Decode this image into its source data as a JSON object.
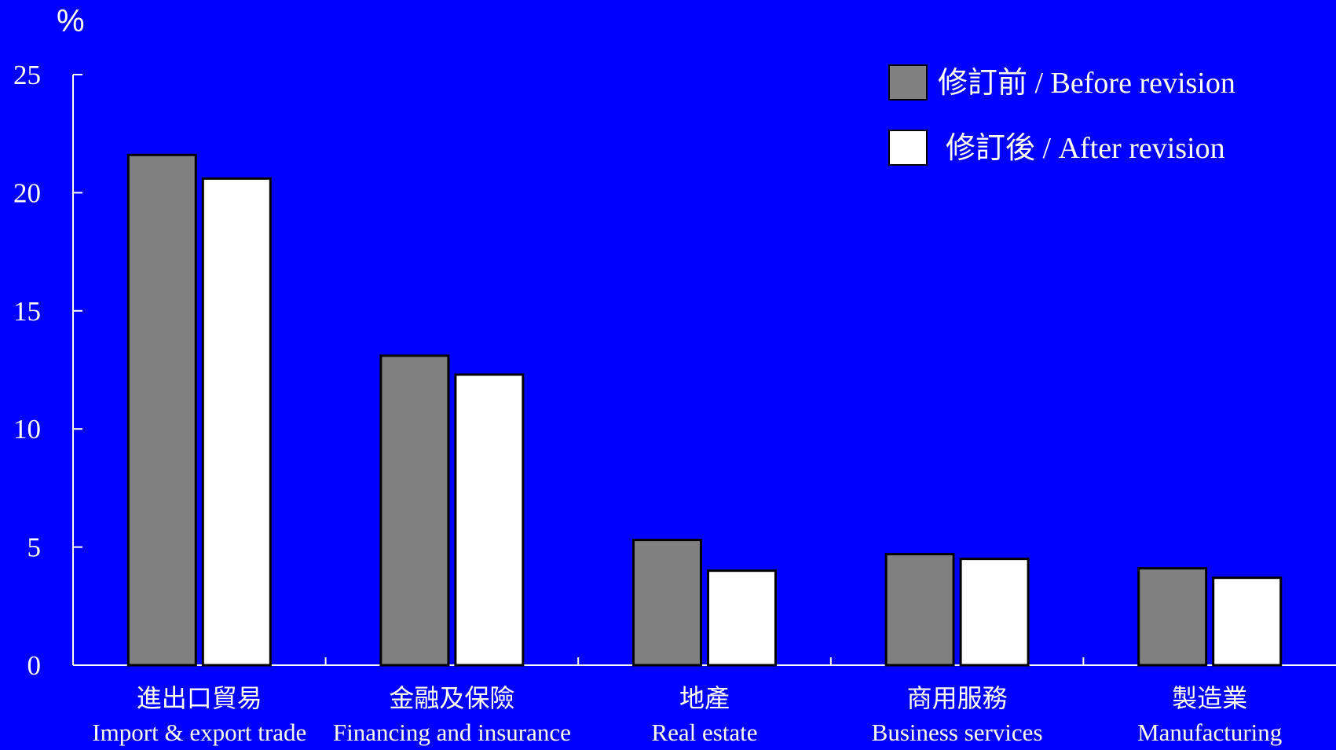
{
  "chart_data": {
    "type": "bar",
    "ylabel": "%",
    "ylim": [
      0,
      25
    ],
    "yticks": [
      "0",
      "5",
      "10",
      "15",
      "20",
      "25"
    ],
    "grid": false,
    "legend_position": "top-right",
    "categories": [
      {
        "zh": "進出口貿易",
        "en": "Import & export trade"
      },
      {
        "zh": "金融及保險",
        "en": "Financing and insurance"
      },
      {
        "zh": "地產",
        "en": "Real estate"
      },
      {
        "zh": "商用服務",
        "en": "Business services"
      },
      {
        "zh": "製造業",
        "en": "Manufacturing"
      }
    ],
    "series": [
      {
        "name": "修訂前 / Before revision",
        "color": "#808080",
        "values": [
          21.6,
          13.1,
          5.3,
          4.7,
          4.1
        ]
      },
      {
        "name": "修訂後 / After revision",
        "color": "#ffffff",
        "values": [
          20.6,
          12.3,
          4.0,
          4.5,
          3.7
        ]
      }
    ],
    "colors": {
      "background": "#0000ff",
      "axis": "#ffffff",
      "bar_edge": "#000000"
    }
  }
}
